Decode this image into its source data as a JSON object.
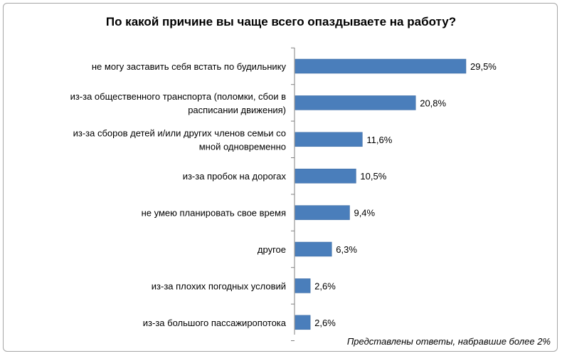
{
  "chart_data": {
    "type": "bar",
    "orientation": "horizontal",
    "title": "По какой причине вы чаще всего опаздываете на работу?",
    "categories": [
      [
        "не могу заставить себя встать по будильнику"
      ],
      [
        "из-за общественного транспорта (поломки, сбои в",
        "расписании движения)"
      ],
      [
        "из-за сборов детей и/или других членов семьи со",
        "мной одновременно"
      ],
      [
        "из-за пробок на дорогах"
      ],
      [
        "не умею планировать свое время"
      ],
      [
        "другое"
      ],
      [
        "из-за плохих погодных условий"
      ],
      [
        "из-за большого пассажиропотока"
      ]
    ],
    "values": [
      29.5,
      20.8,
      11.6,
      10.5,
      9.4,
      6.3,
      2.6,
      2.6
    ],
    "value_labels": [
      "29,5%",
      "20,8%",
      "11,6%",
      "10,5%",
      "9,4%",
      "6,3%",
      "2,6%",
      "2,6%"
    ],
    "bar_color": "#4a7ebb",
    "bar_border_color": "#3a68a0",
    "axis_color": "#808080",
    "grid": false,
    "legend": "none",
    "footnote": "Представлены ответы, набравшие более 2%"
  }
}
